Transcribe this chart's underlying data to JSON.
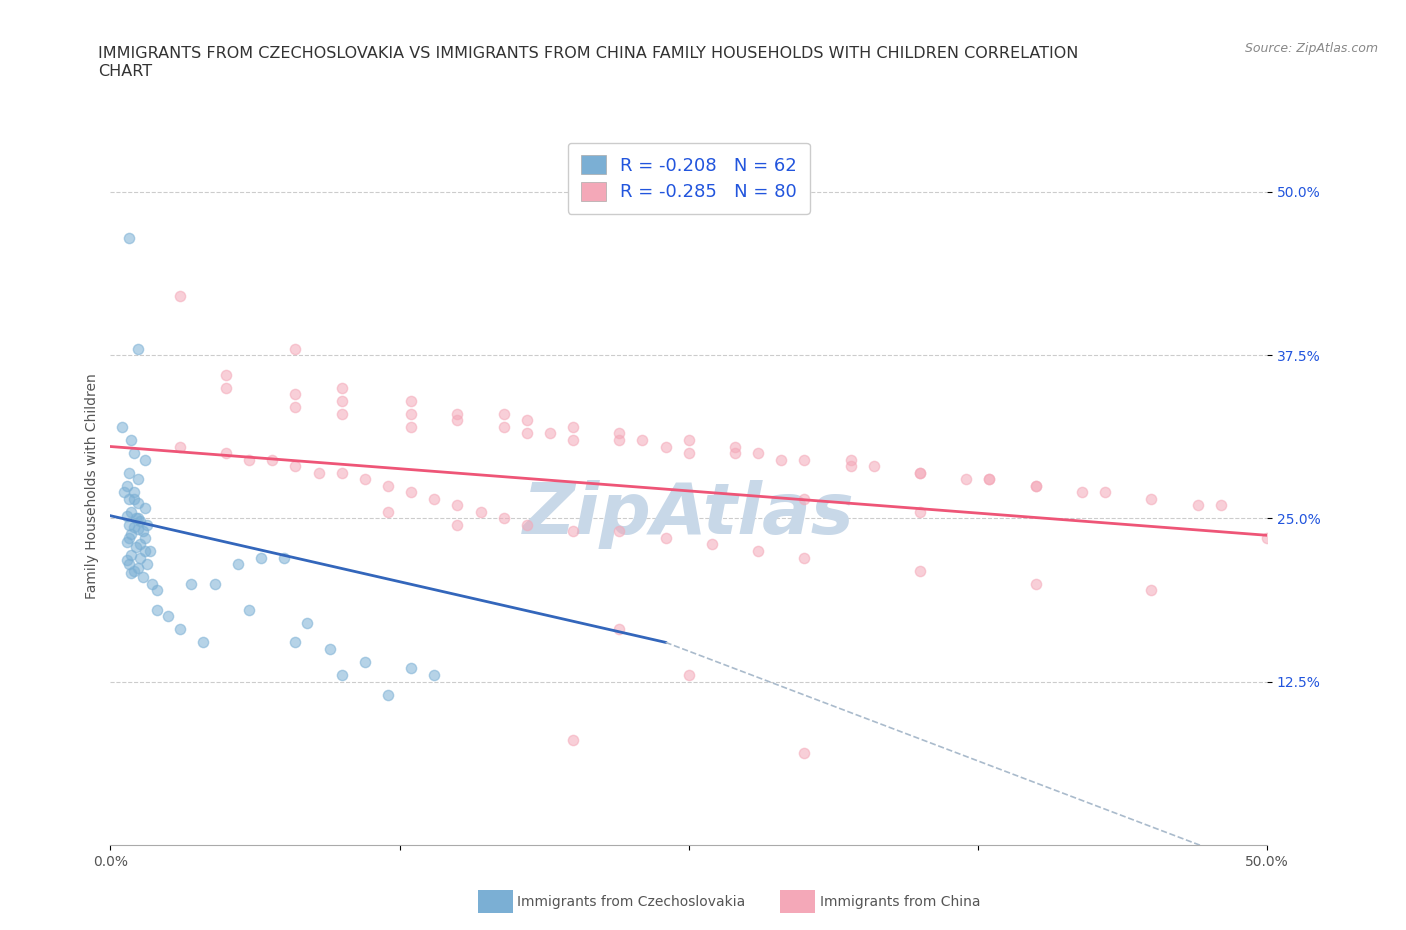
{
  "title_line1": "IMMIGRANTS FROM CZECHOSLOVAKIA VS IMMIGRANTS FROM CHINA FAMILY HOUSEHOLDS WITH CHILDREN CORRELATION",
  "title_line2": "CHART",
  "source": "Source: ZipAtlas.com",
  "ylabel": "Family Households with Children",
  "legend_text_1": "R = -0.208   N = 62",
  "legend_text_2": "R = -0.285   N = 80",
  "color_czech": "#7BAFD4",
  "color_china": "#F4A8B8",
  "line_color_czech": "#3366BB",
  "line_color_china": "#EE5577",
  "xlim": [
    0.0,
    0.5
  ],
  "ylim": [
    0.0,
    0.55
  ],
  "xtick_vals": [
    0.0,
    0.125,
    0.25,
    0.375,
    0.5
  ],
  "ytick_vals_right": [
    0.125,
    0.25,
    0.375,
    0.5
  ],
  "ytick_labels_right": [
    "12.5%",
    "25.0%",
    "37.5%",
    "50.0%"
  ],
  "czech_scatter_x": [
    0.008,
    0.012,
    0.005,
    0.01,
    0.015,
    0.008,
    0.012,
    0.007,
    0.01,
    0.006,
    0.008,
    0.01,
    0.012,
    0.015,
    0.009,
    0.007,
    0.011,
    0.013,
    0.016,
    0.008,
    0.01,
    0.012,
    0.014,
    0.009,
    0.008,
    0.007,
    0.013,
    0.011,
    0.015,
    0.009,
    0.013,
    0.007,
    0.008,
    0.016,
    0.012,
    0.01,
    0.009,
    0.014,
    0.018,
    0.02,
    0.035,
    0.045,
    0.055,
    0.065,
    0.075,
    0.085,
    0.095,
    0.11,
    0.13,
    0.14,
    0.009,
    0.012,
    0.015,
    0.017,
    0.02,
    0.025,
    0.03,
    0.04,
    0.06,
    0.08,
    0.1,
    0.12
  ],
  "czech_scatter_y": [
    0.465,
    0.38,
    0.32,
    0.3,
    0.295,
    0.285,
    0.28,
    0.275,
    0.27,
    0.27,
    0.265,
    0.265,
    0.262,
    0.258,
    0.255,
    0.252,
    0.25,
    0.248,
    0.245,
    0.245,
    0.243,
    0.242,
    0.24,
    0.238,
    0.235,
    0.232,
    0.23,
    0.228,
    0.225,
    0.222,
    0.22,
    0.218,
    0.215,
    0.215,
    0.212,
    0.21,
    0.208,
    0.205,
    0.2,
    0.195,
    0.2,
    0.2,
    0.215,
    0.22,
    0.22,
    0.17,
    0.15,
    0.14,
    0.135,
    0.13,
    0.31,
    0.25,
    0.235,
    0.225,
    0.18,
    0.175,
    0.165,
    0.155,
    0.18,
    0.155,
    0.13,
    0.115
  ],
  "china_scatter_x": [
    0.03,
    0.08,
    0.1,
    0.13,
    0.15,
    0.17,
    0.18,
    0.2,
    0.22,
    0.23,
    0.25,
    0.27,
    0.28,
    0.3,
    0.32,
    0.33,
    0.35,
    0.37,
    0.38,
    0.4,
    0.42,
    0.43,
    0.45,
    0.47,
    0.48,
    0.5,
    0.05,
    0.08,
    0.1,
    0.13,
    0.15,
    0.17,
    0.19,
    0.22,
    0.24,
    0.27,
    0.29,
    0.32,
    0.35,
    0.38,
    0.4,
    0.03,
    0.05,
    0.06,
    0.07,
    0.08,
    0.09,
    0.1,
    0.11,
    0.12,
    0.13,
    0.14,
    0.15,
    0.16,
    0.17,
    0.18,
    0.2,
    0.22,
    0.24,
    0.26,
    0.28,
    0.3,
    0.35,
    0.4,
    0.45,
    0.05,
    0.08,
    0.1,
    0.13,
    0.18,
    0.2,
    0.25,
    0.3,
    0.35,
    0.22,
    0.25,
    0.12,
    0.15,
    0.2,
    0.3
  ],
  "china_scatter_y": [
    0.42,
    0.38,
    0.35,
    0.34,
    0.33,
    0.33,
    0.325,
    0.32,
    0.315,
    0.31,
    0.31,
    0.305,
    0.3,
    0.295,
    0.295,
    0.29,
    0.285,
    0.28,
    0.28,
    0.275,
    0.27,
    0.27,
    0.265,
    0.26,
    0.26,
    0.235,
    0.36,
    0.345,
    0.34,
    0.33,
    0.325,
    0.32,
    0.315,
    0.31,
    0.305,
    0.3,
    0.295,
    0.29,
    0.285,
    0.28,
    0.275,
    0.305,
    0.3,
    0.295,
    0.295,
    0.29,
    0.285,
    0.285,
    0.28,
    0.275,
    0.27,
    0.265,
    0.26,
    0.255,
    0.25,
    0.245,
    0.24,
    0.24,
    0.235,
    0.23,
    0.225,
    0.22,
    0.21,
    0.2,
    0.195,
    0.35,
    0.335,
    0.33,
    0.32,
    0.315,
    0.31,
    0.3,
    0.265,
    0.255,
    0.165,
    0.13,
    0.255,
    0.245,
    0.08,
    0.07
  ],
  "czech_line_x": [
    0.0,
    0.24
  ],
  "czech_line_y": [
    0.252,
    0.155
  ],
  "china_line_x": [
    0.0,
    0.5
  ],
  "china_line_y": [
    0.305,
    0.237
  ],
  "dashed_line_x": [
    0.24,
    0.53
  ],
  "dashed_line_y": [
    0.155,
    -0.04
  ],
  "background_color": "#ffffff",
  "grid_color": "#cccccc",
  "scatter_size": 55,
  "scatter_alpha": 0.55,
  "title_fontsize": 11.5,
  "label_fontsize": 10,
  "tick_fontsize": 10,
  "watermark_color": "#C8D8E8",
  "watermark_fontsize": 52,
  "legend_fontsize": 13
}
